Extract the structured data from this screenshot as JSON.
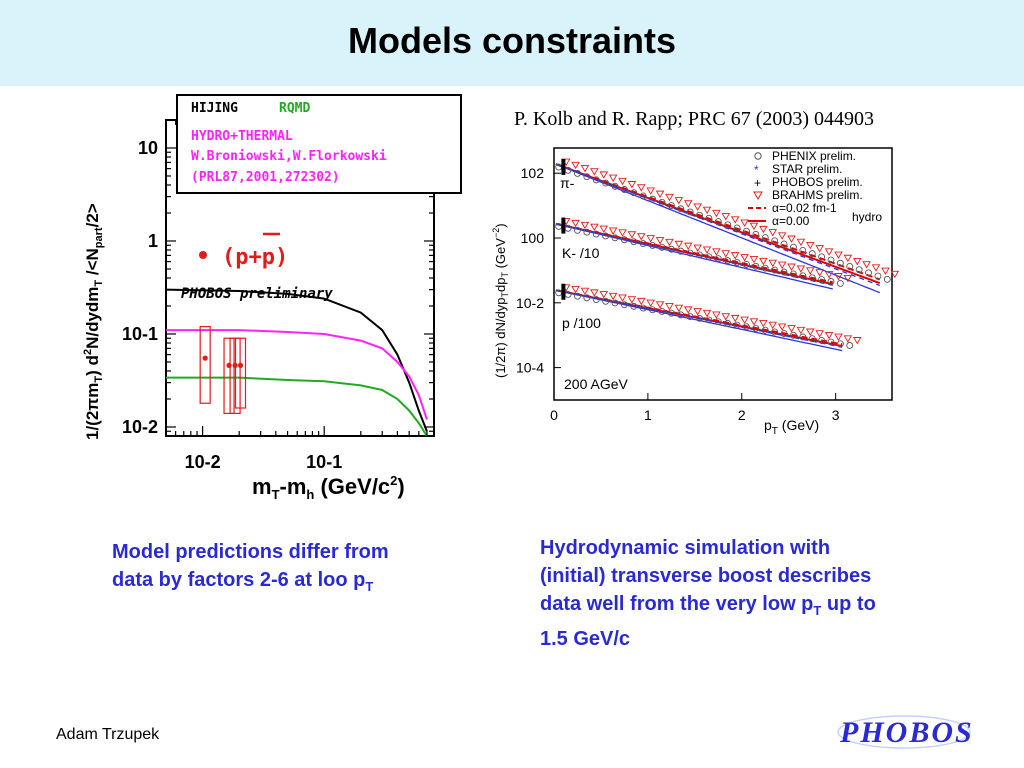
{
  "title": "Models constraints",
  "reference": "P. Kolb and R. Rapp; PRC 67 (2003) 044903",
  "author": "Adam Trzupek",
  "logo_text": "PHOBOS",
  "colors": {
    "title_bg": "#d9f3fa",
    "caption": "#2a2ad4",
    "data_red": "#e31b1b",
    "hijing": "#000000",
    "rqmd": "#22aa22",
    "hydro_thermal": "#ff22ff",
    "hydro_blue": "#2a36e0",
    "hydro_red": "#e00000"
  },
  "captions": {
    "left": {
      "line1": "Model predictions differ from",
      "line2": "data by factors 2-6 at loo p",
      "sub": "T"
    },
    "right": {
      "line1": "Hydrodynamic simulation with",
      "line2": "(initial) transverse boost describes",
      "line3": "data well from the very low p",
      "line3_sub": "T",
      "line3_tail": " up to",
      "line4": "1.5 GeV/c"
    }
  },
  "chart_data": [
    {
      "type": "scatter",
      "xscale": "log",
      "yscale": "log",
      "xlim": [
        0.005,
        0.8
      ],
      "ylim": [
        0.008,
        20
      ],
      "xlabel": "mT-mh (GeV/c2)",
      "ylabel": "1/(2πmT) d2N/dydmT /<Npart/2>",
      "xticks": [
        "10-2",
        "10-1"
      ],
      "yticks": [
        "10",
        "1",
        "10-1",
        "10-2"
      ],
      "legend_box": {
        "hijing": "HIJING",
        "rqmd": "RQMD",
        "hydro1": "HYDRO+THERMAL",
        "hydro2": "W.Broniowski,W.Florkowski",
        "hydro3": "(PRL87,2001,272302)"
      },
      "species_label": "(p+p)",
      "preliminary_label": "PHOBOS preliminary",
      "points": [
        {
          "x": 0.0105,
          "y": 0.055,
          "ylo": 0.018,
          "yhi": 0.12
        },
        {
          "x": 0.0165,
          "y": 0.046,
          "ylo": 0.014,
          "yhi": 0.09
        },
        {
          "x": 0.0185,
          "y": 0.046,
          "ylo": 0.014,
          "yhi": 0.09
        },
        {
          "x": 0.0205,
          "y": 0.046,
          "ylo": 0.016,
          "yhi": 0.09
        }
      ],
      "curves": [
        {
          "name": "HIJING",
          "color": "#000000",
          "x": [
            0.005,
            0.02,
            0.05,
            0.1,
            0.2,
            0.3,
            0.4,
            0.5,
            0.6,
            0.7
          ],
          "y": [
            0.3,
            0.29,
            0.27,
            0.24,
            0.17,
            0.11,
            0.06,
            0.03,
            0.015,
            0.009
          ]
        },
        {
          "name": "HYDRO+THERMAL",
          "color": "#ff22ff",
          "x": [
            0.005,
            0.02,
            0.05,
            0.1,
            0.2,
            0.3,
            0.4,
            0.5,
            0.6,
            0.7
          ],
          "y": [
            0.11,
            0.11,
            0.105,
            0.1,
            0.085,
            0.07,
            0.05,
            0.035,
            0.022,
            0.012
          ]
        },
        {
          "name": "RQMD",
          "color": "#22aa22",
          "x": [
            0.005,
            0.02,
            0.05,
            0.1,
            0.2,
            0.3,
            0.4,
            0.5,
            0.6,
            0.7
          ],
          "y": [
            0.034,
            0.034,
            0.032,
            0.031,
            0.028,
            0.025,
            0.02,
            0.015,
            0.011,
            0.008
          ]
        }
      ]
    },
    {
      "type": "line",
      "yscale": "log",
      "xlim": [
        0,
        3.6
      ],
      "ylim": [
        1e-05,
        600
      ],
      "xlabel": "pT (GeV)",
      "ylabel": "(1/2π) dN/dypTdpT (GeV-2)",
      "xticks": [
        "0",
        "1",
        "2",
        "3"
      ],
      "yticks": [
        "102",
        "100",
        "10-2",
        "10-4"
      ],
      "annotation": "200 AGeV",
      "species": [
        {
          "label": "π-",
          "y0": 200,
          "slope": 2.45
        },
        {
          "label": "K- /10",
          "y0": 2.8,
          "slope": 1.45
        },
        {
          "label": "p /100",
          "y0": 0.025,
          "slope": 1.3
        }
      ],
      "legend": [
        {
          "marker": "circle",
          "text": "PHENIX prelim."
        },
        {
          "marker": "star",
          "text": "STAR prelim."
        },
        {
          "marker": "plus",
          "text": "PHOBOS prelim."
        },
        {
          "marker": "triangle",
          "text": "BRAHMS prelim."
        },
        {
          "marker": "dash-line",
          "text": "α=0.02 fm-1"
        },
        {
          "marker": "solid-line",
          "text": "α=0.00"
        }
      ],
      "legend_group_label": "hydro"
    }
  ]
}
